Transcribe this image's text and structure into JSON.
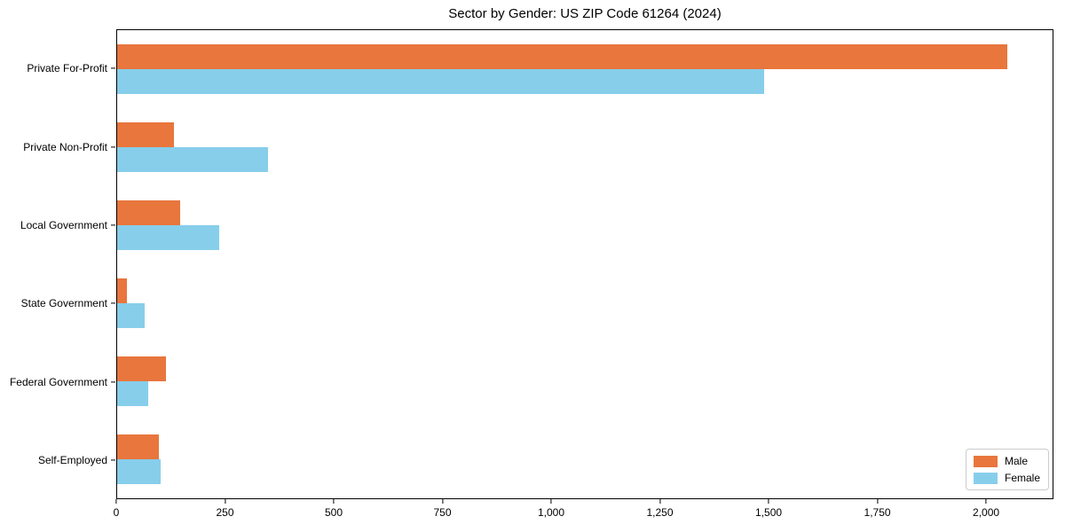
{
  "chart_data": {
    "type": "bar",
    "orientation": "horizontal",
    "title": "Sector by Gender: US ZIP Code 61264 (2024)",
    "categories": [
      "Private For-Profit",
      "Private Non-Profit",
      "Local Government",
      "State Government",
      "Federal Government",
      "Self-Employed"
    ],
    "series": [
      {
        "name": "Male",
        "color": "#e8763d",
        "values": [
          2050,
          130,
          146,
          22,
          112,
          97
        ]
      },
      {
        "name": "Female",
        "color": "#87ceeb",
        "values": [
          1490,
          348,
          236,
          63,
          71,
          100
        ]
      }
    ],
    "xlabel": "",
    "ylabel": "",
    "xlim": [
      0,
      2155
    ],
    "x_ticks": [
      0,
      250,
      500,
      750,
      1000,
      1250,
      1500,
      1750,
      2000
    ],
    "x_tick_labels": [
      "0",
      "250",
      "500",
      "750",
      "1,000",
      "1,250",
      "1,500",
      "1,750",
      "2,000"
    ],
    "grid": false,
    "legend_position": "lower right"
  }
}
